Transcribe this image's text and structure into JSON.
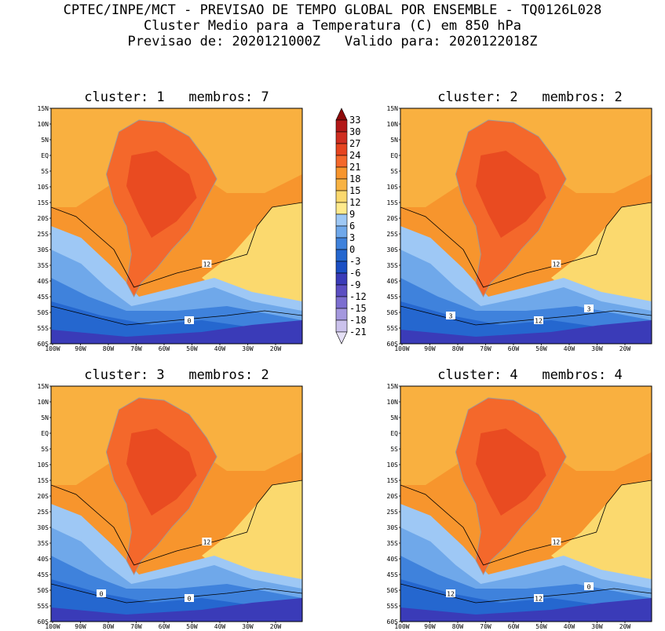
{
  "header": {
    "line1": "CPTEC/INPE/MCT - PREVISAO DE TEMPO GLOBAL POR ENSEMBLE - TQ0126L028",
    "line2": "Cluster Medio para a Temperatura (C) em 850 hPa",
    "line3": "Previsao de: 2020121000Z   Valido para: 2020122018Z"
  },
  "axes": {
    "lat_labels": [
      "15N",
      "10N",
      "5N",
      "EQ",
      "5S",
      "10S",
      "15S",
      "20S",
      "25S",
      "30S",
      "35S",
      "40S",
      "45S",
      "50S",
      "55S",
      "60S"
    ],
    "lon_labels": [
      "100W",
      "90W",
      "80W",
      "70W",
      "60W",
      "50W",
      "40W",
      "30W",
      "20W"
    ]
  },
  "colorbar": {
    "levels": [
      "33",
      "30",
      "27",
      "24",
      "21",
      "18",
      "15",
      "12",
      "9",
      "6",
      "3",
      "0",
      "-3",
      "-6",
      "-9",
      "-12",
      "-15",
      "-18",
      "-21"
    ],
    "colors": [
      "#8e0a0a",
      "#b31818",
      "#cf2d20",
      "#e6441f",
      "#f4682b",
      "#f7952d",
      "#f8b343",
      "#fbd96e",
      "#ffea8c",
      "#9ec8f5",
      "#6fa8ea",
      "#3f82dc",
      "#2567cf",
      "#1b4fc4",
      "#3a3bb8",
      "#5b4ec2",
      "#7c6ed0",
      "#a498de",
      "#cbc2ec",
      "#e5e0f6"
    ]
  },
  "panels": [
    {
      "title": "cluster: 1   membros: 7",
      "contours": [
        "12",
        "0"
      ]
    },
    {
      "title": "cluster: 2   membros: 2",
      "contours": [
        "12",
        "12",
        "3",
        "3"
      ]
    },
    {
      "title": "cluster: 3   membros: 2",
      "contours": [
        "12",
        "0",
        "0"
      ]
    },
    {
      "title": "cluster: 4   membros: 4",
      "contours": [
        "12",
        "12",
        "12",
        "0"
      ]
    }
  ],
  "colors": {
    "warm_ocean": "#f7952d",
    "mild": "#f8b343",
    "pale": "#fbd96e",
    "hot": "#f4682b",
    "hotter": "#e6441f",
    "cold1": "#9ec8f5",
    "cold2": "#6fa8ea",
    "cold3": "#3f82dc",
    "cold4": "#2567cf",
    "cold5": "#3a3bb8",
    "border": "#9a9a9a"
  }
}
